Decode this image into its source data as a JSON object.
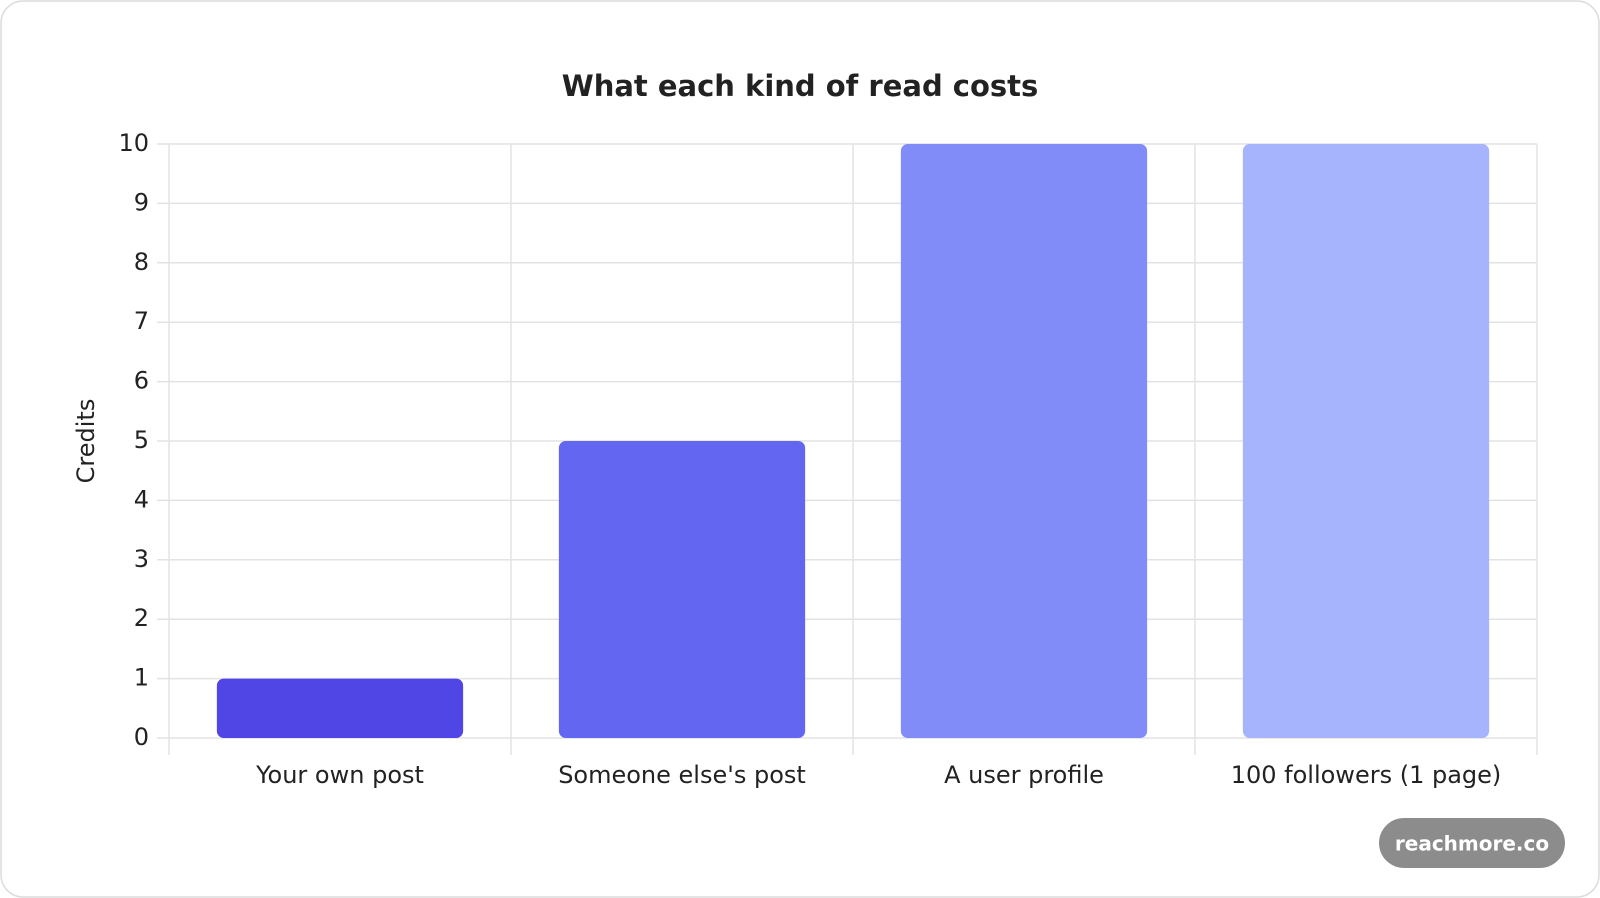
{
  "chart_data": {
    "type": "bar",
    "title": "What each kind of read costs",
    "y_label": "Credits",
    "categories": [
      "Your own post",
      "Someone else's post",
      "A user profile",
      "100 followers (1 page)"
    ],
    "values": [
      1,
      5,
      10,
      10
    ],
    "colors": [
      "#4f46e5",
      "#6366f1",
      "#818cf8",
      "#a5b4fc"
    ],
    "ylim": [
      0,
      10
    ],
    "yticks": [
      0,
      1,
      2,
      3,
      4,
      5,
      6,
      7,
      8,
      9,
      10
    ],
    "grid": true
  },
  "watermark": "reachmore.co"
}
